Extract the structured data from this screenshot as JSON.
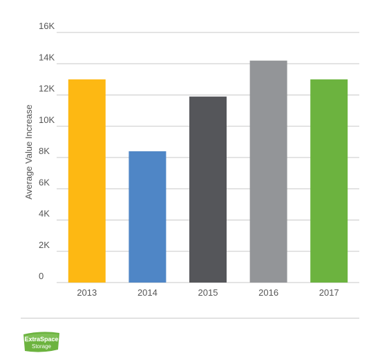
{
  "chart_data": {
    "type": "bar",
    "title": "",
    "xlabel": "",
    "ylabel": "Average Value Increase",
    "categories": [
      "2013",
      "2014",
      "2015",
      "2016",
      "2017"
    ],
    "values": [
      13000,
      8400,
      11900,
      14200,
      13000
    ],
    "colors": [
      "#FDB813",
      "#4F86C6",
      "#55565A",
      "#939598",
      "#6CB33F"
    ],
    "ylim": [
      0,
      16000
    ],
    "yticks": [
      0,
      2000,
      4000,
      6000,
      8000,
      10000,
      12000,
      14000,
      16000
    ],
    "ytick_labels": [
      "0",
      "2K",
      "4K",
      "6K",
      "8K",
      "10K",
      "12K",
      "14K",
      "16K"
    ],
    "grid": true,
    "legend": "none"
  },
  "logo": {
    "name": "extra-space-storage-logo",
    "text_line1": "ExtraSpace",
    "text_line2": "Storage",
    "color": "#6CB33F"
  }
}
